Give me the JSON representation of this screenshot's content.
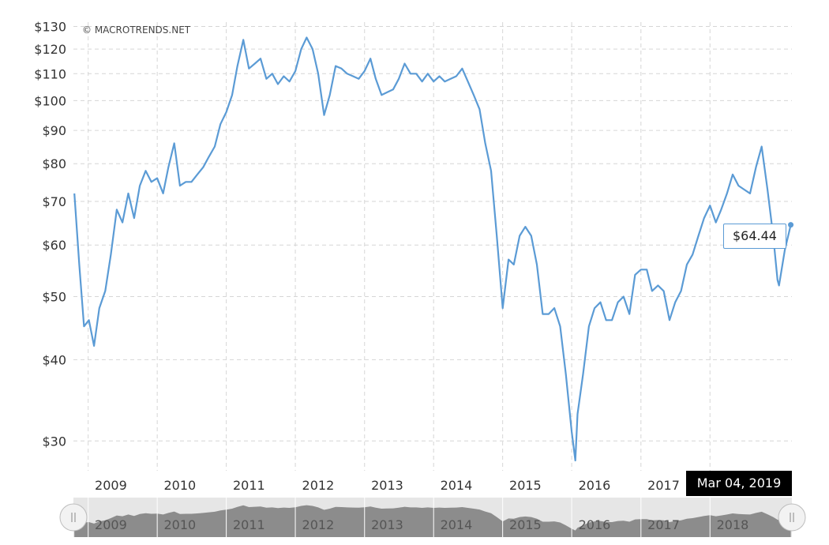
{
  "watermark": "© MACROTRENDS.NET",
  "tooltip": {
    "value": "$64.44",
    "date": "Mar 04, 2019"
  },
  "colors": {
    "line": "#5b9bd5",
    "grid": "#d6d6d6",
    "navigator_fill": "#8c8c8c",
    "navigator_bg": "#e6e6e6"
  },
  "chart_data": {
    "type": "line",
    "title": "",
    "xlabel": "",
    "ylabel": "",
    "y_scale": "log",
    "ylim": [
      27,
      132
    ],
    "grid": true,
    "y_ticks": [
      "$30",
      "$40",
      "$50",
      "$60",
      "$70",
      "$80",
      "$90",
      "$100",
      "$110",
      "$120",
      "$130"
    ],
    "y_tick_values": [
      30,
      40,
      50,
      60,
      70,
      80,
      90,
      100,
      110,
      120,
      130
    ],
    "x_ticks": [
      "2009",
      "2010",
      "2011",
      "2012",
      "2013",
      "2014",
      "2015",
      "2016",
      "2017",
      "2018"
    ],
    "navigator_ticks": [
      "2009",
      "2010",
      "2011",
      "2012",
      "2013",
      "2014",
      "2015",
      "2016",
      "2017",
      "2018"
    ],
    "series": [
      {
        "x": [
          "2008-10-20",
          "2008-11-15",
          "2008-12-10",
          "2009-01-05",
          "2009-02-01",
          "2009-03-01",
          "2009-04-01",
          "2009-05-01",
          "2009-06-01",
          "2009-07-01",
          "2009-08-01",
          "2009-09-01",
          "2009-10-01",
          "2009-11-01",
          "2009-12-01",
          "2010-01-01",
          "2010-02-01",
          "2010-03-01",
          "2010-04-01",
          "2010-05-01",
          "2010-06-01",
          "2010-07-01",
          "2010-08-01",
          "2010-09-01",
          "2010-10-01",
          "2010-11-01",
          "2010-12-01",
          "2011-01-01",
          "2011-02-01",
          "2011-03-01",
          "2011-04-01",
          "2011-05-01",
          "2011-06-01",
          "2011-07-01",
          "2011-08-01",
          "2011-09-01",
          "2011-10-01",
          "2011-11-01",
          "2011-12-01",
          "2012-01-01",
          "2012-02-01",
          "2012-03-01",
          "2012-04-01",
          "2012-05-01",
          "2012-06-01",
          "2012-07-01",
          "2012-08-01",
          "2012-09-01",
          "2012-10-01",
          "2012-11-01",
          "2012-12-01",
          "2013-01-01",
          "2013-02-01",
          "2013-03-01",
          "2013-04-01",
          "2013-05-01",
          "2013-06-01",
          "2013-07-01",
          "2013-08-01",
          "2013-09-01",
          "2013-10-01",
          "2013-11-01",
          "2013-12-01",
          "2014-01-01",
          "2014-02-01",
          "2014-03-01",
          "2014-04-01",
          "2014-05-01",
          "2014-06-01",
          "2014-07-01",
          "2014-08-01",
          "2014-09-01",
          "2014-10-01",
          "2014-11-01",
          "2014-12-01",
          "2015-01-01",
          "2015-02-01",
          "2015-03-01",
          "2015-04-01",
          "2015-05-01",
          "2015-06-01",
          "2015-07-01",
          "2015-08-01",
          "2015-09-01",
          "2015-10-01",
          "2015-11-01",
          "2015-12-01",
          "2016-01-01",
          "2016-01-20",
          "2016-02-01",
          "2016-03-01",
          "2016-04-01",
          "2016-05-01",
          "2016-06-01",
          "2016-07-01",
          "2016-08-01",
          "2016-09-01",
          "2016-10-01",
          "2016-11-01",
          "2016-12-01",
          "2017-01-01",
          "2017-02-01",
          "2017-03-01",
          "2017-04-01",
          "2017-05-01",
          "2017-06-01",
          "2017-07-01",
          "2017-08-01",
          "2017-09-01",
          "2017-10-01",
          "2017-11-01",
          "2017-12-01",
          "2018-01-01",
          "2018-02-01",
          "2018-03-01",
          "2018-04-01",
          "2018-05-01",
          "2018-06-01",
          "2018-07-01",
          "2018-08-01",
          "2018-09-01",
          "2018-10-01",
          "2018-11-01",
          "2018-12-01",
          "2018-12-24",
          "2019-01-01",
          "2019-02-01",
          "2019-03-04"
        ],
        "values": [
          72,
          56,
          45,
          46,
          42,
          48,
          51,
          58,
          68,
          65,
          72,
          66,
          74,
          78,
          75,
          76,
          72,
          79,
          86,
          74,
          75,
          75,
          77,
          79,
          82,
          85,
          92,
          96,
          102,
          113,
          124,
          112,
          114,
          116,
          108,
          110,
          106,
          109,
          107,
          111,
          120,
          125,
          120,
          110,
          95,
          102,
          113,
          112,
          110,
          109,
          108,
          111,
          116,
          108,
          102,
          103,
          104,
          108,
          114,
          110,
          110,
          107,
          110,
          107,
          109,
          107,
          108,
          109,
          112,
          107,
          102,
          97,
          86,
          78,
          62,
          48,
          57,
          56,
          62,
          64,
          62,
          56,
          47,
          47,
          48,
          45,
          38,
          31,
          28,
          33,
          38,
          45,
          48,
          49,
          46,
          46,
          49,
          50,
          47,
          54,
          55,
          55,
          51,
          52,
          51,
          46,
          49,
          51,
          56,
          58,
          62,
          66,
          69,
          65,
          68,
          72,
          77,
          74,
          73,
          72,
          79,
          85,
          73,
          62,
          53,
          52,
          59,
          64.44
        ]
      }
    ]
  }
}
